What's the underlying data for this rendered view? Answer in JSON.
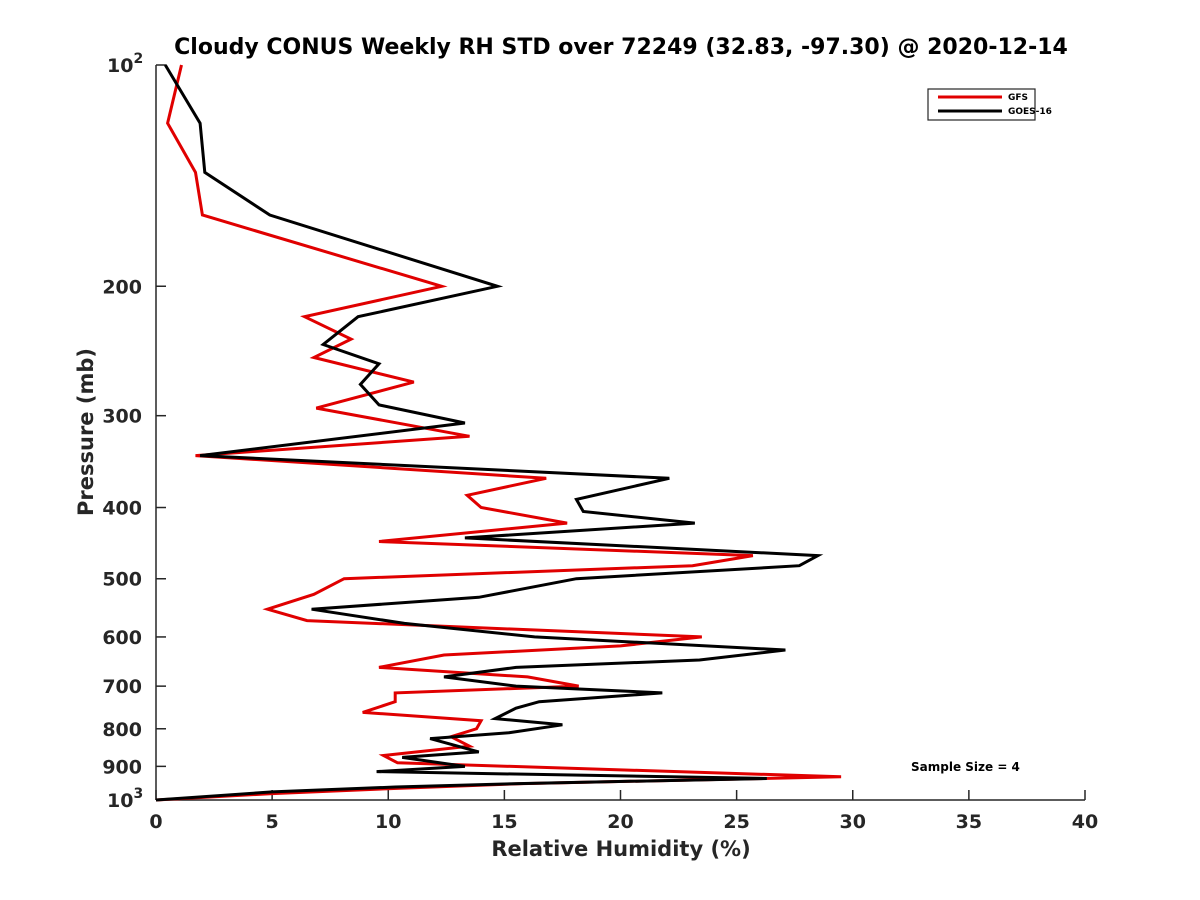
{
  "chart_data": {
    "type": "line",
    "title": "Cloudy CONUS Weekly RH STD over 72249 (32.83, -97.30) @ 2020-12-14",
    "xlabel": "Relative Humidity (%)",
    "ylabel": "Pressure (mb)",
    "xlim": [
      0,
      40
    ],
    "ylim": [
      100,
      1000
    ],
    "yscale": "log",
    "yreversed": true,
    "grid": false,
    "xticks": [
      0,
      5,
      10,
      15,
      20,
      25,
      30,
      35,
      40
    ],
    "xtick_labels": [
      "0",
      "5",
      "10",
      "15",
      "20",
      "25",
      "30",
      "35",
      "40"
    ],
    "yticks": [
      100,
      200,
      300,
      400,
      500,
      600,
      700,
      800,
      900,
      1000
    ],
    "ytick_labels": [
      "10^2",
      "200",
      "300",
      "400",
      "500",
      "600",
      "700",
      "800",
      "900",
      "10^3"
    ],
    "legend": {
      "placement": "top-right",
      "entries": [
        "GFS",
        "GOES-16"
      ]
    },
    "annotation": "Sample Size = 4",
    "series": [
      {
        "name": "GFS",
        "color": "#e00000",
        "points": [
          [
            1.1,
            100
          ],
          [
            0.5,
            120
          ],
          [
            1.7,
            140
          ],
          [
            2.0,
            160
          ],
          [
            12.3,
            200
          ],
          [
            6.4,
            220
          ],
          [
            8.4,
            236
          ],
          [
            6.8,
            250
          ],
          [
            11.1,
            270
          ],
          [
            6.9,
            293
          ],
          [
            13.5,
            320
          ],
          [
            1.7,
            340
          ],
          [
            16.8,
            365
          ],
          [
            13.4,
            385
          ],
          [
            14.0,
            400
          ],
          [
            17.7,
            420
          ],
          [
            9.6,
            445
          ],
          [
            25.7,
            465
          ],
          [
            23.1,
            480
          ],
          [
            8.1,
            500
          ],
          [
            6.8,
            525
          ],
          [
            4.8,
            550
          ],
          [
            6.5,
            570
          ],
          [
            23.5,
            600
          ],
          [
            20.0,
            617
          ],
          [
            12.4,
            635
          ],
          [
            9.6,
            660
          ],
          [
            16.0,
            680
          ],
          [
            18.2,
            700
          ],
          [
            10.3,
            715
          ],
          [
            10.3,
            735
          ],
          [
            8.9,
            760
          ],
          [
            14.0,
            780
          ],
          [
            13.8,
            800
          ],
          [
            12.7,
            820
          ],
          [
            13.5,
            845
          ],
          [
            9.8,
            870
          ],
          [
            10.4,
            890
          ],
          [
            29.5,
            930
          ],
          [
            15.8,
            950
          ],
          [
            10.1,
            965
          ],
          [
            5.0,
            980
          ],
          [
            0.0,
            1000
          ]
        ]
      },
      {
        "name": "GOES-16",
        "color": "#000000",
        "points": [
          [
            0.4,
            100
          ],
          [
            1.9,
            120
          ],
          [
            2.1,
            140
          ],
          [
            4.9,
            160
          ],
          [
            14.7,
            200
          ],
          [
            8.7,
            220
          ],
          [
            7.2,
            240
          ],
          [
            9.6,
            255
          ],
          [
            8.8,
            272
          ],
          [
            9.6,
            290
          ],
          [
            13.3,
            307
          ],
          [
            1.9,
            340
          ],
          [
            22.1,
            365
          ],
          [
            18.1,
            390
          ],
          [
            18.4,
            405
          ],
          [
            23.2,
            420
          ],
          [
            13.3,
            440
          ],
          [
            28.5,
            465
          ],
          [
            27.7,
            480
          ],
          [
            18.1,
            500
          ],
          [
            13.9,
            530
          ],
          [
            6.7,
            550
          ],
          [
            10.7,
            575
          ],
          [
            16.3,
            600
          ],
          [
            27.1,
            625
          ],
          [
            23.4,
            645
          ],
          [
            15.5,
            660
          ],
          [
            12.4,
            680
          ],
          [
            15.5,
            700
          ],
          [
            21.8,
            715
          ],
          [
            16.5,
            735
          ],
          [
            15.5,
            750
          ],
          [
            14.6,
            775
          ],
          [
            17.5,
            790
          ],
          [
            15.2,
            810
          ],
          [
            11.8,
            825
          ],
          [
            13.9,
            860
          ],
          [
            10.6,
            875
          ],
          [
            13.3,
            900
          ],
          [
            9.5,
            915
          ],
          [
            26.3,
            935
          ],
          [
            15.6,
            950
          ],
          [
            10.3,
            960
          ],
          [
            5.0,
            975
          ],
          [
            0.0,
            1000
          ]
        ]
      }
    ]
  }
}
